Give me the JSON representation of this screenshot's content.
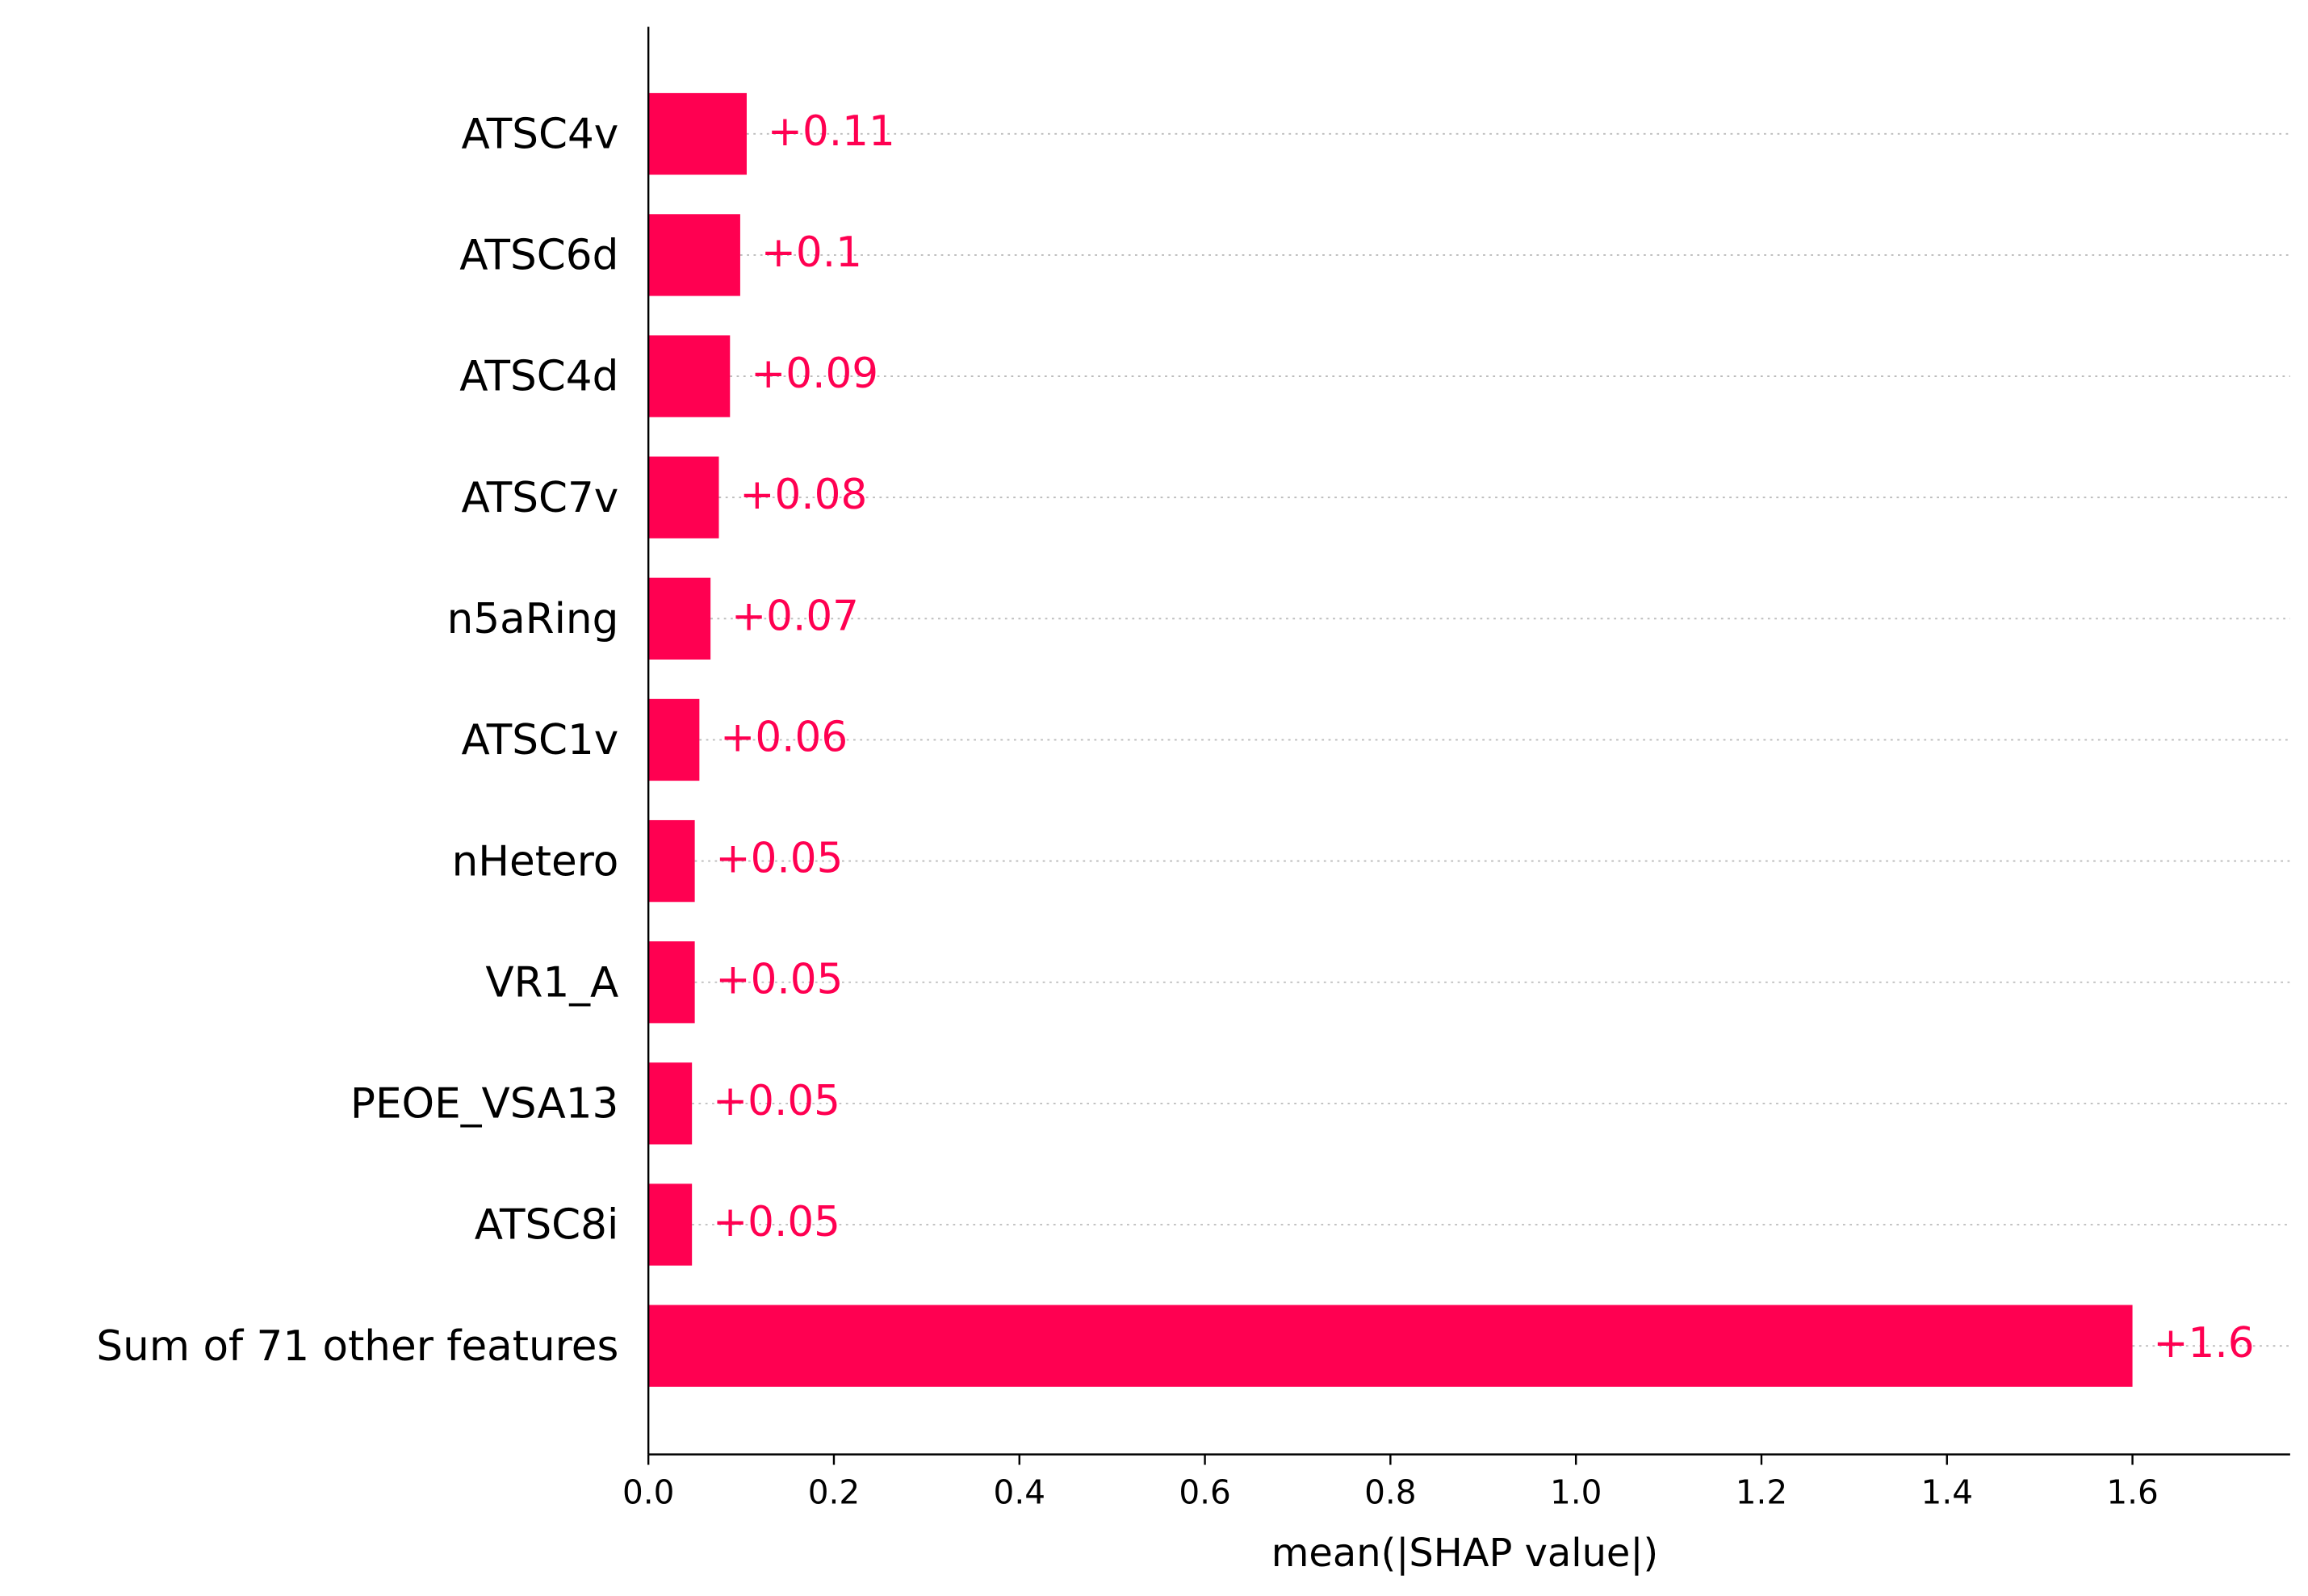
{
  "chart_data": {
    "type": "barh",
    "xlabel": "mean(|SHAP value|)",
    "categories": [
      "ATSC4v",
      "ATSC6d",
      "ATSC4d",
      "ATSC7v",
      "n5aRing",
      "ATSC1v",
      "nHetero",
      "VR1_A",
      "PEOE_VSA13",
      "ATSC8i",
      "Sum of 71 other features"
    ],
    "values": [
      0.106,
      0.099,
      0.088,
      0.076,
      0.067,
      0.055,
      0.05,
      0.05,
      0.047,
      0.047,
      1.6
    ],
    "value_labels": [
      "+0.11",
      "+0.1",
      "+0.09",
      "+0.08",
      "+0.07",
      "+0.06",
      "+0.05",
      "+0.05",
      "+0.05",
      "+0.05",
      "+1.6"
    ],
    "color": "#ff0051",
    "xlim": [
      0,
      1.77
    ],
    "xticks": [
      {
        "value": 0,
        "label": "0.0"
      },
      {
        "value": 0.2,
        "label": "0.2"
      },
      {
        "value": 0.4,
        "label": "0.4"
      },
      {
        "value": 0.6,
        "label": "0.6"
      },
      {
        "value": 0.8,
        "label": "0.8"
      },
      {
        "value": 1.0,
        "label": "1.0"
      },
      {
        "value": 1.2,
        "label": "1.2"
      },
      {
        "value": 1.4,
        "label": "1.4"
      },
      {
        "value": 1.6,
        "label": "1.6"
      }
    ],
    "grid": true
  }
}
